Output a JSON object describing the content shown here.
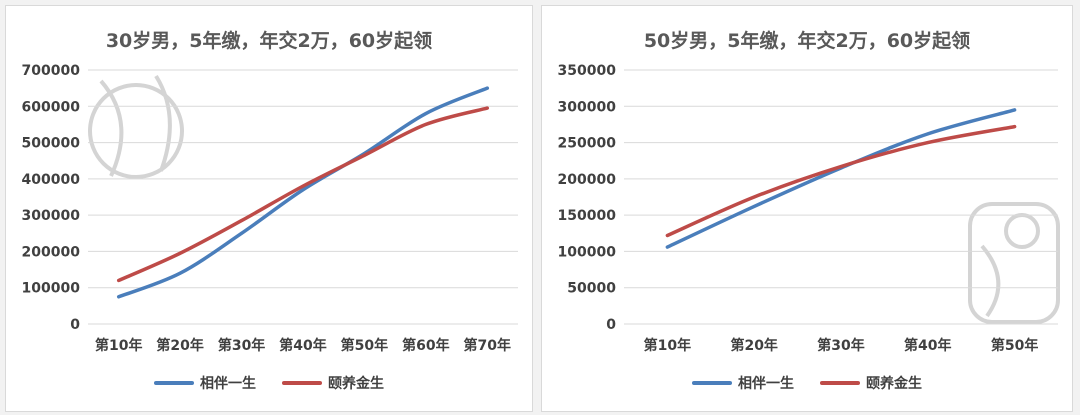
{
  "chart_data": [
    {
      "type": "line",
      "title": "30岁男，5年缴，年交2万，60岁起领",
      "categories": [
        "第10年",
        "第20年",
        "第30年",
        "第40年",
        "第50年",
        "第60年",
        "第70年"
      ],
      "series": [
        {
          "name": "相伴一生",
          "color": "#4a7ebb",
          "values": [
            75000,
            140000,
            250000,
            370000,
            470000,
            580000,
            650000
          ]
        },
        {
          "name": "颐养金生",
          "color": "#be4b48",
          "values": [
            120000,
            195000,
            285000,
            380000,
            465000,
            550000,
            595000
          ]
        }
      ],
      "y_ticks": [
        "0",
        "100000",
        "200000",
        "300000",
        "400000",
        "500000",
        "600000",
        "700000"
      ],
      "ylim": [
        0,
        700000
      ],
      "grid": true,
      "legend_position": "bottom"
    },
    {
      "type": "line",
      "title": "50岁男，5年缴，年交2万，60岁起领",
      "categories": [
        "第10年",
        "第20年",
        "第30年",
        "第40年",
        "第50年"
      ],
      "series": [
        {
          "name": "相伴一生",
          "color": "#4a7ebb",
          "values": [
            106000,
            162000,
            215000,
            262000,
            295000
          ]
        },
        {
          "name": "颐养金生",
          "color": "#be4b48",
          "values": [
            122000,
            175000,
            217000,
            250000,
            272000
          ]
        }
      ],
      "y_ticks": [
        "0",
        "50000",
        "100000",
        "150000",
        "200000",
        "250000",
        "300000",
        "350000"
      ],
      "ylim": [
        0,
        350000
      ],
      "grid": true,
      "legend_position": "bottom"
    }
  ]
}
